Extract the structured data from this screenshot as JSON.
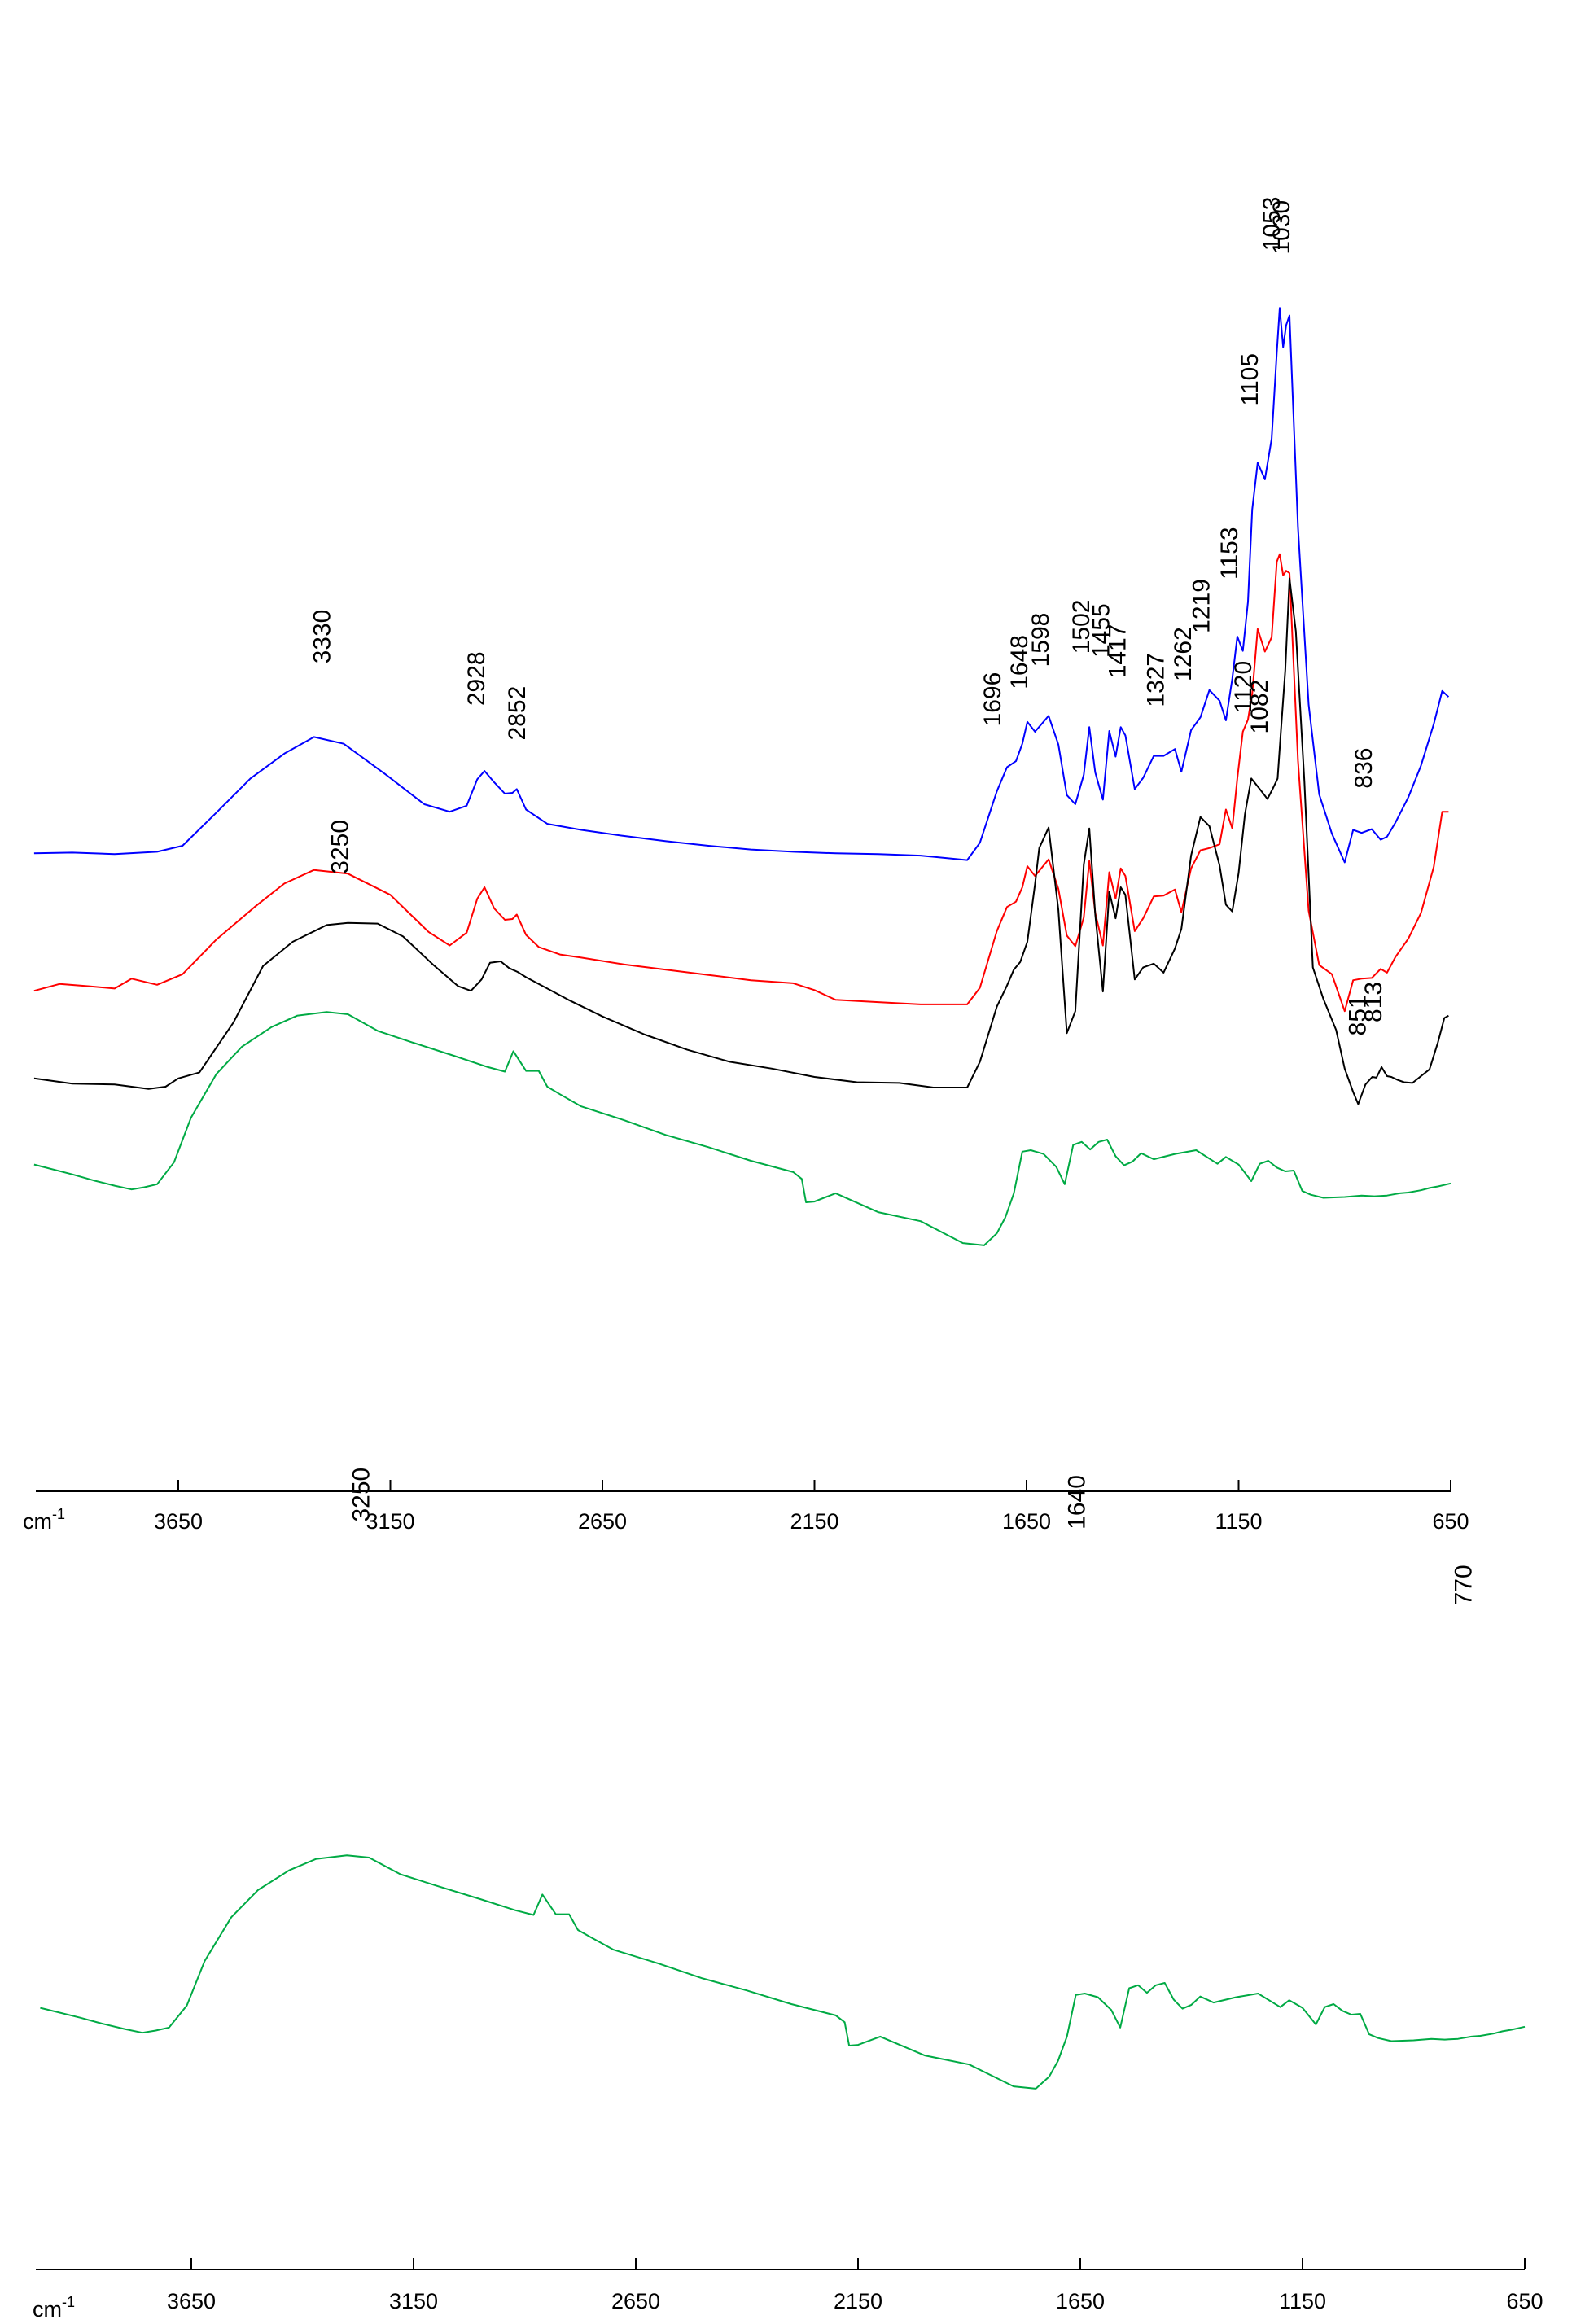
{
  "chart_data": [
    {
      "type": "line",
      "title": "",
      "xlabel": "",
      "ylabel": "",
      "x_unit_label": "cm",
      "x_unit_exponent": "-1",
      "xlim": [
        4000,
        650
      ],
      "x_reversed": true,
      "x_ticks": [
        "3650",
        "3150",
        "2650",
        "2150",
        "1650",
        "1150",
        "650"
      ],
      "grid": false,
      "legend": "none",
      "series": [
        {
          "color": "#0000ff",
          "x": [
            3990,
            3900,
            3800,
            3700,
            3640,
            3560,
            3480,
            3400,
            3330,
            3260,
            3160,
            3070,
            3010,
            2970,
            2945,
            2928,
            2905,
            2880,
            2862,
            2852,
            2830,
            2780,
            2700,
            2600,
            2500,
            2400,
            2300,
            2200,
            2100,
            2000,
            1900,
            1790,
            1760,
            1720,
            1696,
            1675,
            1660,
            1648,
            1630,
            1598,
            1575,
            1555,
            1535,
            1515,
            1502,
            1488,
            1470,
            1455,
            1440,
            1428,
            1417,
            1395,
            1375,
            1350,
            1327,
            1300,
            1285,
            1262,
            1240,
            1219,
            1195,
            1180,
            1165,
            1153,
            1140,
            1128,
            1118,
            1105,
            1088,
            1072,
            1060,
            1053,
            1045,
            1038,
            1030,
            1010,
            985,
            960,
            930,
            900,
            880,
            860,
            836,
            815,
            800,
            780,
            750,
            720,
            690,
            670,
            655
          ],
          "y": [
            0.4,
            0.5,
            0.3,
            0.6,
            1.4,
            5.8,
            10.3,
            13.6,
            15.8,
            14.9,
            10.8,
            6.9,
            5.9,
            6.7,
            10.2,
            11.3,
            9.8,
            8.3,
            8.4,
            8.9,
            6.2,
            4.3,
            3.5,
            2.7,
            2.0,
            1.4,
            0.9,
            0.6,
            0.4,
            0.3,
            0.1,
            -0.5,
            1.8,
            8.6,
            11.8,
            12.6,
            14.9,
            17.8,
            16.5,
            18.6,
            14.8,
            8.1,
            6.9,
            10.8,
            17.1,
            11.1,
            7.5,
            16.6,
            13.2,
            17.1,
            16.0,
            8.9,
            10.4,
            13.3,
            13.3,
            14.2,
            11.2,
            16.7,
            18.4,
            22.0,
            20.6,
            18.0,
            23.5,
            29.1,
            27.2,
            33.7,
            45.9,
            52.1,
            49.9,
            55.3,
            66.7,
            72.6,
            67.4,
            70.3,
            71.6,
            43.6,
            20.1,
            8.2,
            3.0,
            -0.8,
            3.5,
            3.1,
            3.6,
            2.2,
            2.6,
            4.5,
            7.8,
            12.0,
            17.5,
            21.9,
            21.1
          ]
        },
        {
          "color": "#ff0000",
          "x": [
            3990,
            3930,
            3860,
            3800,
            3760,
            3700,
            3640,
            3560,
            3470,
            3400,
            3330,
            3250,
            3150,
            3060,
            3010,
            2970,
            2945,
            2928,
            2905,
            2880,
            2862,
            2852,
            2830,
            2800,
            2750,
            2700,
            2600,
            2500,
            2400,
            2300,
            2200,
            2150,
            2100,
            2000,
            1900,
            1790,
            1760,
            1720,
            1696,
            1675,
            1660,
            1648,
            1630,
            1598,
            1575,
            1555,
            1535,
            1515,
            1502,
            1488,
            1470,
            1455,
            1440,
            1428,
            1417,
            1395,
            1375,
            1350,
            1327,
            1300,
            1285,
            1262,
            1240,
            1219,
            1195,
            1180,
            1165,
            1153,
            1140,
            1128,
            1118,
            1105,
            1088,
            1072,
            1060,
            1053,
            1045,
            1038,
            1030,
            1010,
            985,
            960,
            930,
            900,
            880,
            860,
            836,
            815,
            800,
            780,
            750,
            720,
            690,
            670,
            655
          ],
          "y": [
            -17.8,
            -16.9,
            -17.2,
            -17.5,
            -16.2,
            -17.0,
            -15.6,
            -11.0,
            -6.7,
            -3.6,
            -1.8,
            -2.3,
            -5.1,
            -10.0,
            -11.8,
            -10.1,
            -5.6,
            -4.1,
            -6.9,
            -8.4,
            -8.3,
            -7.7,
            -10.4,
            -12.0,
            -13.0,
            -13.4,
            -14.3,
            -15.0,
            -15.7,
            -16.4,
            -16.8,
            -17.7,
            -19.0,
            -19.3,
            -19.6,
            -19.6,
            -17.4,
            -9.9,
            -6.7,
            -6.0,
            -4.1,
            -1.3,
            -2.6,
            -0.4,
            -4.3,
            -10.5,
            -11.9,
            -8.1,
            -0.6,
            -7.5,
            -11.8,
            -2.1,
            -5.6,
            -1.6,
            -2.6,
            -9.9,
            -8.2,
            -5.3,
            -5.2,
            -4.4,
            -7.4,
            -1.6,
            0.8,
            1.1,
            1.6,
            6.2,
            3.7,
            10.3,
            16.5,
            18.1,
            21.5,
            30.1,
            27.1,
            29.0,
            39.0,
            40.0,
            37.2,
            37.8,
            37.5,
            12.7,
            -7.2,
            -14.4,
            -15.6,
            -20.5,
            -16.4,
            -16.2,
            -16.1,
            -14.9,
            -15.4,
            -13.3,
            -10.9,
            -7.5,
            -1.4,
            5.9,
            5.9
          ]
        },
        {
          "color": "#000000",
          "x": [
            3990,
            3900,
            3800,
            3720,
            3680,
            3650,
            3600,
            3520,
            3450,
            3380,
            3300,
            3250,
            3180,
            3120,
            3050,
            2990,
            2960,
            2935,
            2915,
            2890,
            2870,
            2850,
            2830,
            2790,
            2730,
            2650,
            2550,
            2450,
            2350,
            2250,
            2150,
            2050,
            1950,
            1870,
            1790,
            1760,
            1720,
            1696,
            1680,
            1665,
            1648,
            1630,
            1620,
            1598,
            1575,
            1555,
            1535,
            1515,
            1502,
            1488,
            1470,
            1455,
            1440,
            1428,
            1417,
            1395,
            1375,
            1350,
            1327,
            1300,
            1285,
            1262,
            1240,
            1219,
            1195,
            1180,
            1165,
            1150,
            1135,
            1120,
            1100,
            1082,
            1070,
            1058,
            1050,
            1040,
            1030,
            1015,
            995,
            975,
            950,
            920,
            900,
            880,
            868,
            851,
            835,
            825,
            813,
            800,
            790,
            775,
            760,
            740,
            720,
            700,
            680,
            665,
            655
          ],
          "y": [
            -29.4,
            -30.1,
            -30.2,
            -30.8,
            -30.5,
            -29.4,
            -28.6,
            -22.0,
            -14.5,
            -11.3,
            -9.1,
            -8.8,
            -8.9,
            -10.6,
            -14.3,
            -17.2,
            -17.8,
            -16.3,
            -14.1,
            -13.9,
            -14.8,
            -15.3,
            -16.0,
            -17.2,
            -19.0,
            -21.2,
            -23.6,
            -25.6,
            -27.2,
            -28.1,
            -29.2,
            -29.9,
            -30.0,
            -30.6,
            -30.6,
            -27.2,
            -19.9,
            -17.1,
            -15.0,
            -14.0,
            -11.3,
            -3.7,
            1.1,
            3.8,
            -7.1,
            -23.4,
            -20.5,
            -1.1,
            3.7,
            -7.7,
            -17.9,
            -4.7,
            -8.2,
            -4.1,
            -5.1,
            -16.3,
            -14.7,
            -14.2,
            -15.4,
            -12.2,
            -9.6,
            0.1,
            5.2,
            4.0,
            -1.2,
            -6.4,
            -7.3,
            -2.2,
            5.6,
            10.3,
            8.9,
            7.6,
            8.9,
            10.3,
            16.8,
            24.6,
            36.8,
            29.8,
            9.9,
            -14.7,
            -18.9,
            -23.0,
            -28.1,
            -31.2,
            -32.8,
            -30.2,
            -29.2,
            -29.3,
            -27.9,
            -29.1,
            -29.2,
            -29.6,
            -29.9,
            -30.0,
            -29.1,
            -28.2,
            -24.6,
            -21.4,
            -21.1
          ]
        },
        {
          "color": "#00aa44",
          "x": [
            3990,
            3900,
            3850,
            3800,
            3760,
            3730,
            3700,
            3660,
            3620,
            3560,
            3500,
            3430,
            3370,
            3300,
            3250,
            3180,
            3100,
            3000,
            2920,
            2880,
            2860,
            2830,
            2800,
            2780,
            2750,
            2700,
            2600,
            2500,
            2400,
            2300,
            2200,
            2180,
            2170,
            2150,
            2100,
            2000,
            1900,
            1800,
            1750,
            1720,
            1700,
            1680,
            1660,
            1640,
            1610,
            1580,
            1560,
            1540,
            1520,
            1500,
            1480,
            1460,
            1440,
            1420,
            1400,
            1380,
            1350,
            1300,
            1250,
            1200,
            1180,
            1150,
            1120,
            1100,
            1080,
            1060,
            1040,
            1020,
            1000,
            980,
            950,
            900,
            860,
            830,
            800,
            780,
            770,
            750,
            720,
            700,
            680,
            665,
            650
          ],
          "y": [
            -40.8,
            -42.1,
            -42.9,
            -43.6,
            -44.1,
            -43.8,
            -43.4,
            -40.5,
            -34.6,
            -28.8,
            -25.2,
            -22.6,
            -21.1,
            -20.6,
            -20.9,
            -23.1,
            -24.6,
            -26.4,
            -27.9,
            -28.5,
            -25.8,
            -28.4,
            -28.4,
            -30.5,
            -31.5,
            -33.1,
            -34.9,
            -36.9,
            -38.5,
            -40.3,
            -41.8,
            -42.7,
            -45.8,
            -45.7,
            -44.6,
            -47.1,
            -48.3,
            -51.2,
            -51.5,
            -49.9,
            -47.8,
            -44.6,
            -39.1,
            -38.9,
            -39.4,
            -41.1,
            -43.4,
            -38.2,
            -37.8,
            -38.8,
            -37.8,
            -37.5,
            -39.7,
            -40.9,
            -40.4,
            -39.3,
            -40.1,
            -39.4,
            -38.9,
            -40.7,
            -39.8,
            -40.8,
            -43.0,
            -40.7,
            -40.3,
            -41.2,
            -41.7,
            -41.6,
            -44.3,
            -44.8,
            -45.2,
            -45.1,
            -44.9,
            -45.0,
            -44.9,
            -44.7,
            -44.6,
            -44.5,
            -44.2,
            -43.9,
            -43.7,
            -43.5,
            -43.3
          ]
        }
      ],
      "annotations": [
        {
          "label": "3330",
          "series": 0
        },
        {
          "label": "2928",
          "series": 0
        },
        {
          "label": "2852",
          "series": 0
        },
        {
          "label": "1696",
          "series": 0
        },
        {
          "label": "1648",
          "series": 0
        },
        {
          "label": "1598",
          "series": 0
        },
        {
          "label": "1502",
          "series": 0
        },
        {
          "label": "1455",
          "series": 0
        },
        {
          "label": "1417",
          "series": 0
        },
        {
          "label": "1327",
          "series": 0
        },
        {
          "label": "1262",
          "series": 0
        },
        {
          "label": "1219",
          "series": 0
        },
        {
          "label": "1153",
          "series": 0
        },
        {
          "label": "1105",
          "series": 0
        },
        {
          "label": "1053",
          "series": 0
        },
        {
          "label": "1030",
          "series": 0
        },
        {
          "label": "836",
          "series": 0
        },
        {
          "label": "1120",
          "series": 2
        },
        {
          "label": "1082",
          "series": 2
        },
        {
          "label": "3250",
          "series": 2
        },
        {
          "label": "851",
          "series": 2
        },
        {
          "label": "813",
          "series": 2
        }
      ]
    },
    {
      "type": "line",
      "title": "",
      "xlabel": "",
      "ylabel": "",
      "x_unit_label": "cm",
      "x_unit_exponent": "-1",
      "xlim": [
        4000,
        650
      ],
      "x_reversed": true,
      "x_ticks": [
        "3650",
        "3150",
        "2650",
        "2150",
        "1650",
        "1150",
        "650"
      ],
      "grid": false,
      "legend": "none",
      "series": [
        {
          "color": "#00aa44",
          "x": [
            3990,
            3900,
            3850,
            3800,
            3760,
            3730,
            3700,
            3660,
            3620,
            3560,
            3500,
            3430,
            3370,
            3300,
            3250,
            3180,
            3100,
            3000,
            2920,
            2880,
            2860,
            2830,
            2800,
            2780,
            2750,
            2700,
            2600,
            2500,
            2400,
            2300,
            2200,
            2180,
            2170,
            2150,
            2100,
            2000,
            1900,
            1800,
            1750,
            1720,
            1700,
            1680,
            1660,
            1640,
            1610,
            1580,
            1560,
            1540,
            1520,
            1500,
            1480,
            1460,
            1440,
            1420,
            1400,
            1380,
            1350,
            1300,
            1250,
            1200,
            1180,
            1150,
            1120,
            1100,
            1080,
            1060,
            1040,
            1020,
            1000,
            980,
            950,
            900,
            860,
            830,
            800,
            780,
            770,
            750,
            720,
            700,
            680,
            665,
            650
          ],
          "y": [
            -40.8,
            -42.1,
            -42.9,
            -43.6,
            -44.1,
            -43.8,
            -43.4,
            -40.5,
            -34.6,
            -28.8,
            -25.2,
            -22.6,
            -21.1,
            -20.6,
            -20.9,
            -23.1,
            -24.6,
            -26.4,
            -27.9,
            -28.5,
            -25.8,
            -28.4,
            -28.4,
            -30.5,
            -31.5,
            -33.1,
            -34.9,
            -36.9,
            -38.5,
            -40.3,
            -41.8,
            -42.7,
            -45.8,
            -45.7,
            -44.6,
            -47.1,
            -48.3,
            -51.2,
            -51.5,
            -49.9,
            -47.8,
            -44.6,
            -39.1,
            -38.9,
            -39.4,
            -41.1,
            -43.4,
            -38.2,
            -37.8,
            -38.8,
            -37.8,
            -37.5,
            -39.7,
            -40.9,
            -40.4,
            -39.3,
            -40.1,
            -39.4,
            -38.9,
            -40.7,
            -39.8,
            -40.8,
            -43.0,
            -40.7,
            -40.3,
            -41.2,
            -41.7,
            -41.6,
            -44.3,
            -44.8,
            -45.2,
            -45.1,
            -44.9,
            -45.0,
            -44.9,
            -44.7,
            -44.6,
            -44.5,
            -44.2,
            -43.9,
            -43.7,
            -43.5,
            -43.3
          ]
        }
      ],
      "annotations": [
        {
          "label": "3250",
          "series": 0
        },
        {
          "label": "1640",
          "series": 0
        },
        {
          "label": "770",
          "series": 0
        }
      ]
    }
  ]
}
